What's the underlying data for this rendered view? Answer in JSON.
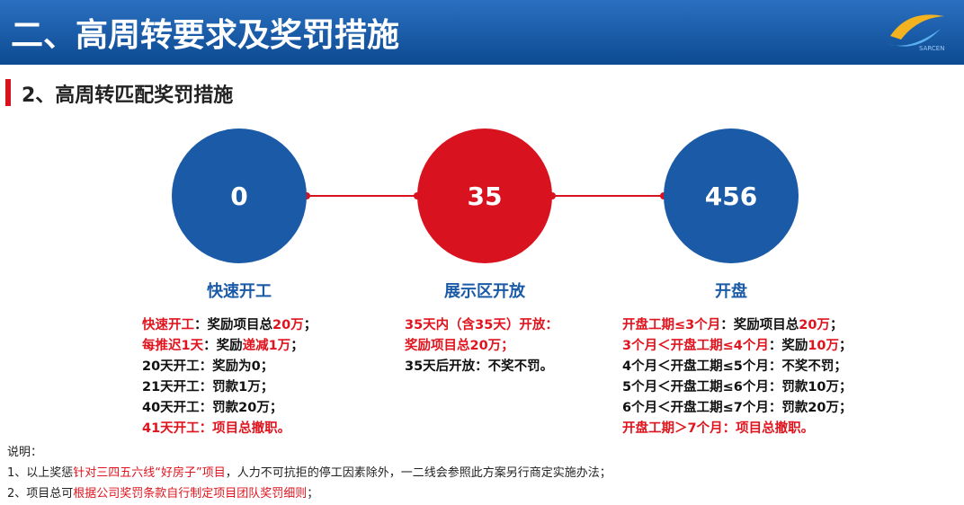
{
  "header": {
    "title": "二、高周转要求及奖罚措施",
    "logo_text": "SARCEN"
  },
  "subtitle": "2、高周转匹配奖罚措施",
  "milestones": [
    {
      "number": "0",
      "label": "快速开工",
      "color": "#1a5aa6"
    },
    {
      "number": "35",
      "label": "展示区开放",
      "color": "#d9121f"
    },
    {
      "number": "456",
      "label": "开盘",
      "color": "#1a5aa6"
    }
  ],
  "columns": [
    {
      "lines": [
        [
          {
            "text": "快速开工",
            "red": true
          },
          {
            "text": "：奖励项目总",
            "red": false
          },
          {
            "text": "20万",
            "red": true
          },
          {
            "text": "；",
            "red": false
          }
        ],
        [
          {
            "text": "每推迟1天",
            "red": true
          },
          {
            "text": "：奖励",
            "red": false
          },
          {
            "text": "递减1万",
            "red": true
          },
          {
            "text": "；",
            "red": false
          }
        ],
        [
          {
            "text": "20天开工：奖励为0；",
            "red": false
          }
        ],
        [
          {
            "text": "21天开工：罚款1万；",
            "red": false
          }
        ],
        [
          {
            "text": "40天开工：罚款20万；",
            "red": false
          }
        ],
        [
          {
            "text": "41天开工：项目总撤职。",
            "red": true
          }
        ]
      ]
    },
    {
      "lines": [
        [
          {
            "text": "35天内（含35天）开放：",
            "red": true
          }
        ],
        [
          {
            "text": "奖励项目总20万；",
            "red": true
          }
        ],
        [
          {
            "text": "35天后开放：不奖不罚。",
            "red": false
          }
        ]
      ]
    },
    {
      "lines": [
        [
          {
            "text": "开盘工期≤3个月",
            "red": true
          },
          {
            "text": "：奖励项目总",
            "red": false
          },
          {
            "text": "20万",
            "red": true
          },
          {
            "text": "；",
            "red": false
          }
        ],
        [
          {
            "text": "3个月＜开盘工期≤4个月",
            "red": true
          },
          {
            "text": "：奖励",
            "red": false
          },
          {
            "text": "10万",
            "red": true
          },
          {
            "text": "；",
            "red": false
          }
        ],
        [
          {
            "text": "4个月＜开盘工期≤5个月：不奖不罚；",
            "red": false
          }
        ],
        [
          {
            "text": "5个月＜开盘工期≤6个月：罚款10万；",
            "red": false
          }
        ],
        [
          {
            "text": "6个月＜开盘工期≤7个月：罚款20万；",
            "red": false
          }
        ],
        [
          {
            "text": "开盘工期＞7个月：项目总撤职。",
            "red": true
          }
        ]
      ]
    }
  ],
  "notes": {
    "heading": "说明：",
    "lines": [
      [
        {
          "text": "1、以上奖惩",
          "red": false
        },
        {
          "text": "针对三四五六线“好房子”项目",
          "red": true
        },
        {
          "text": "，人力不可抗拒的停工因素除外，一二线会参照此方案另行商定实施办法；",
          "red": false
        }
      ],
      [
        {
          "text": "2、项目总可",
          "red": false
        },
        {
          "text": "根据公司奖罚条款自行制定项目团队奖罚细则",
          "red": true
        },
        {
          "text": "；",
          "red": false
        }
      ]
    ]
  }
}
